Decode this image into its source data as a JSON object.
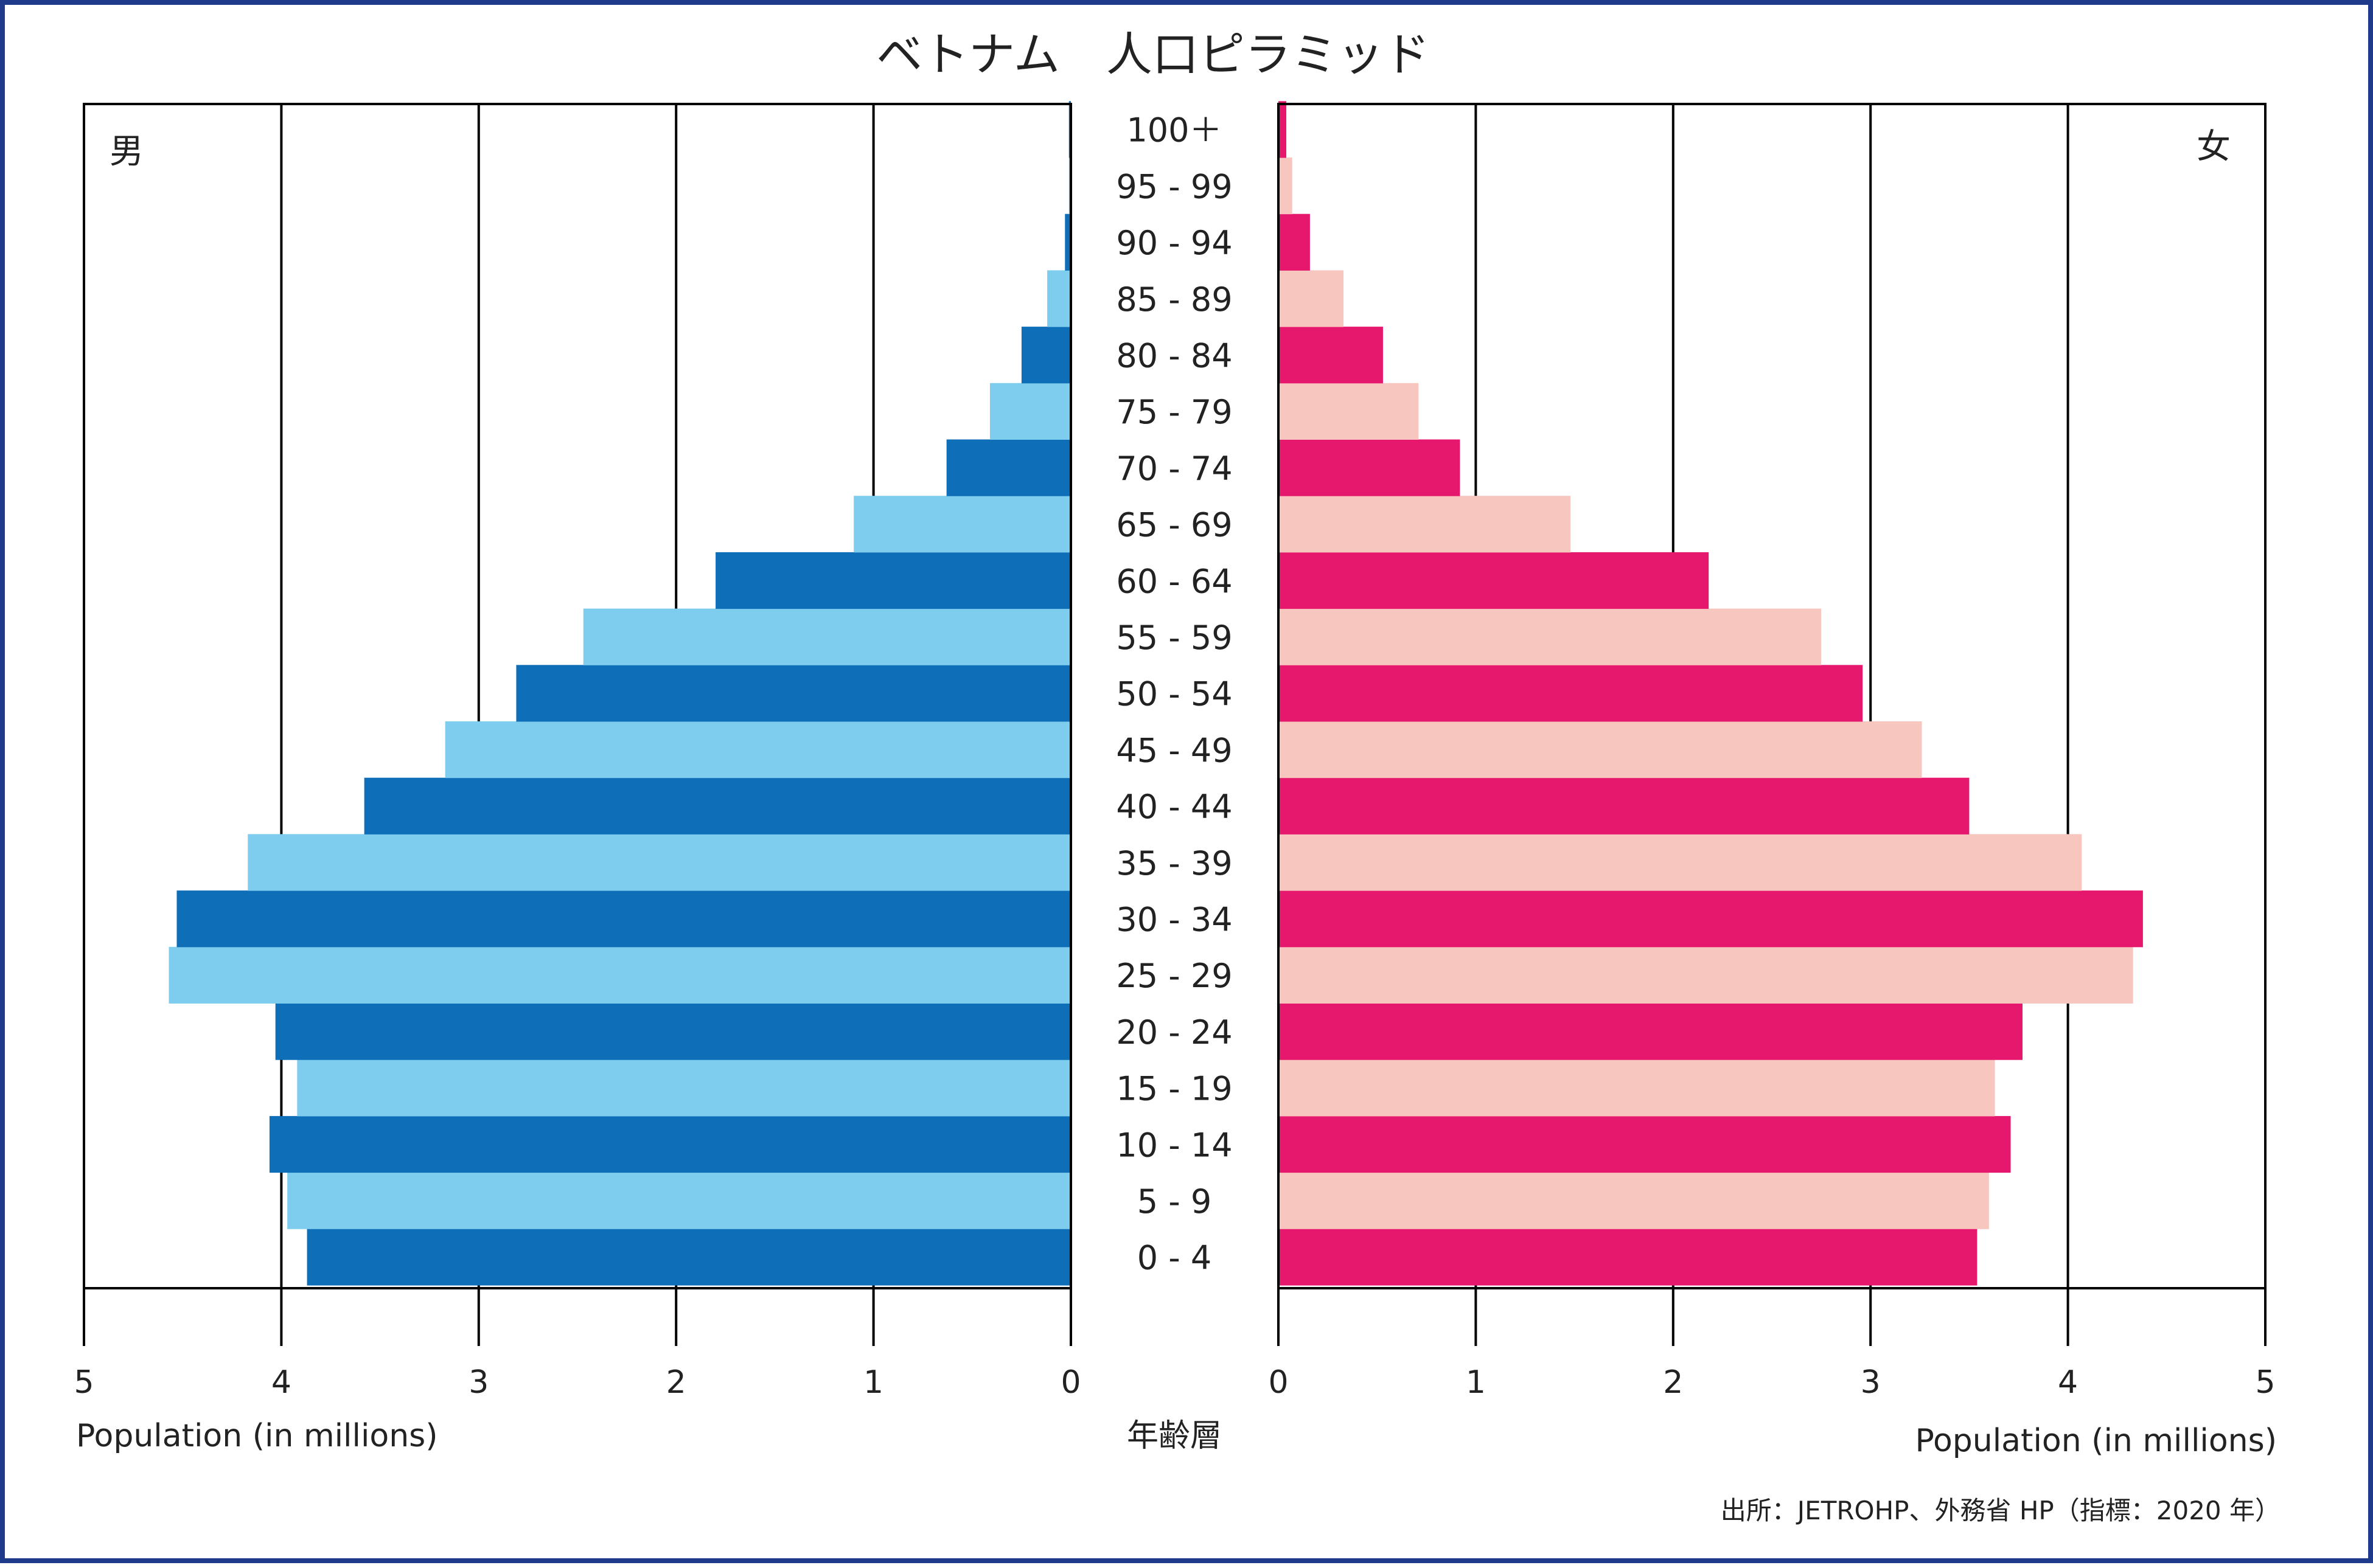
{
  "chart_data": {
    "type": "bar",
    "title": "ベトナム　人口ピラミッド",
    "categories": [
      "0 - 4",
      "5 - 9",
      "10 - 14",
      "15 - 19",
      "20 - 24",
      "25 - 29",
      "30 - 34",
      "35 - 39",
      "40 - 44",
      "45 - 49",
      "50 - 54",
      "55 - 59",
      "60 - 64",
      "65 - 69",
      "70 - 74",
      "75 - 79",
      "80 - 84",
      "85 - 89",
      "90 - 94",
      "95 - 99",
      "100＋"
    ],
    "series": [
      {
        "name": "男",
        "values": [
          3.87,
          3.97,
          4.06,
          3.92,
          4.03,
          4.57,
          4.53,
          4.17,
          3.58,
          3.17,
          2.81,
          2.47,
          1.8,
          1.1,
          0.63,
          0.41,
          0.25,
          0.12,
          0.03,
          0.01,
          0.01
        ]
      },
      {
        "name": "女",
        "values": [
          3.54,
          3.6,
          3.71,
          3.63,
          3.77,
          4.33,
          4.38,
          4.07,
          3.5,
          3.26,
          2.96,
          2.75,
          2.18,
          1.48,
          0.92,
          0.71,
          0.53,
          0.33,
          0.16,
          0.07,
          0.04
        ]
      }
    ],
    "x_ticks_left": [
      "5",
      "4",
      "3",
      "2",
      "1",
      "0"
    ],
    "x_ticks_right": [
      "0",
      "1",
      "2",
      "3",
      "4",
      "5"
    ],
    "xlabel_left": "Population (in millions)",
    "xlabel_right": "Population (in millions)",
    "center_label": "年齢層",
    "xlim": [
      0,
      5
    ],
    "grid": true,
    "source": "出所：JETROHP、外務省 HP（指標：2020 年）",
    "colors": {
      "male_dark": "#0f6eb8",
      "male_light": "#7ecdee",
      "female_dark": "#e6186e",
      "female_light": "#f7c6bf",
      "border": "#1f3a8a",
      "axis": "#000000"
    }
  }
}
